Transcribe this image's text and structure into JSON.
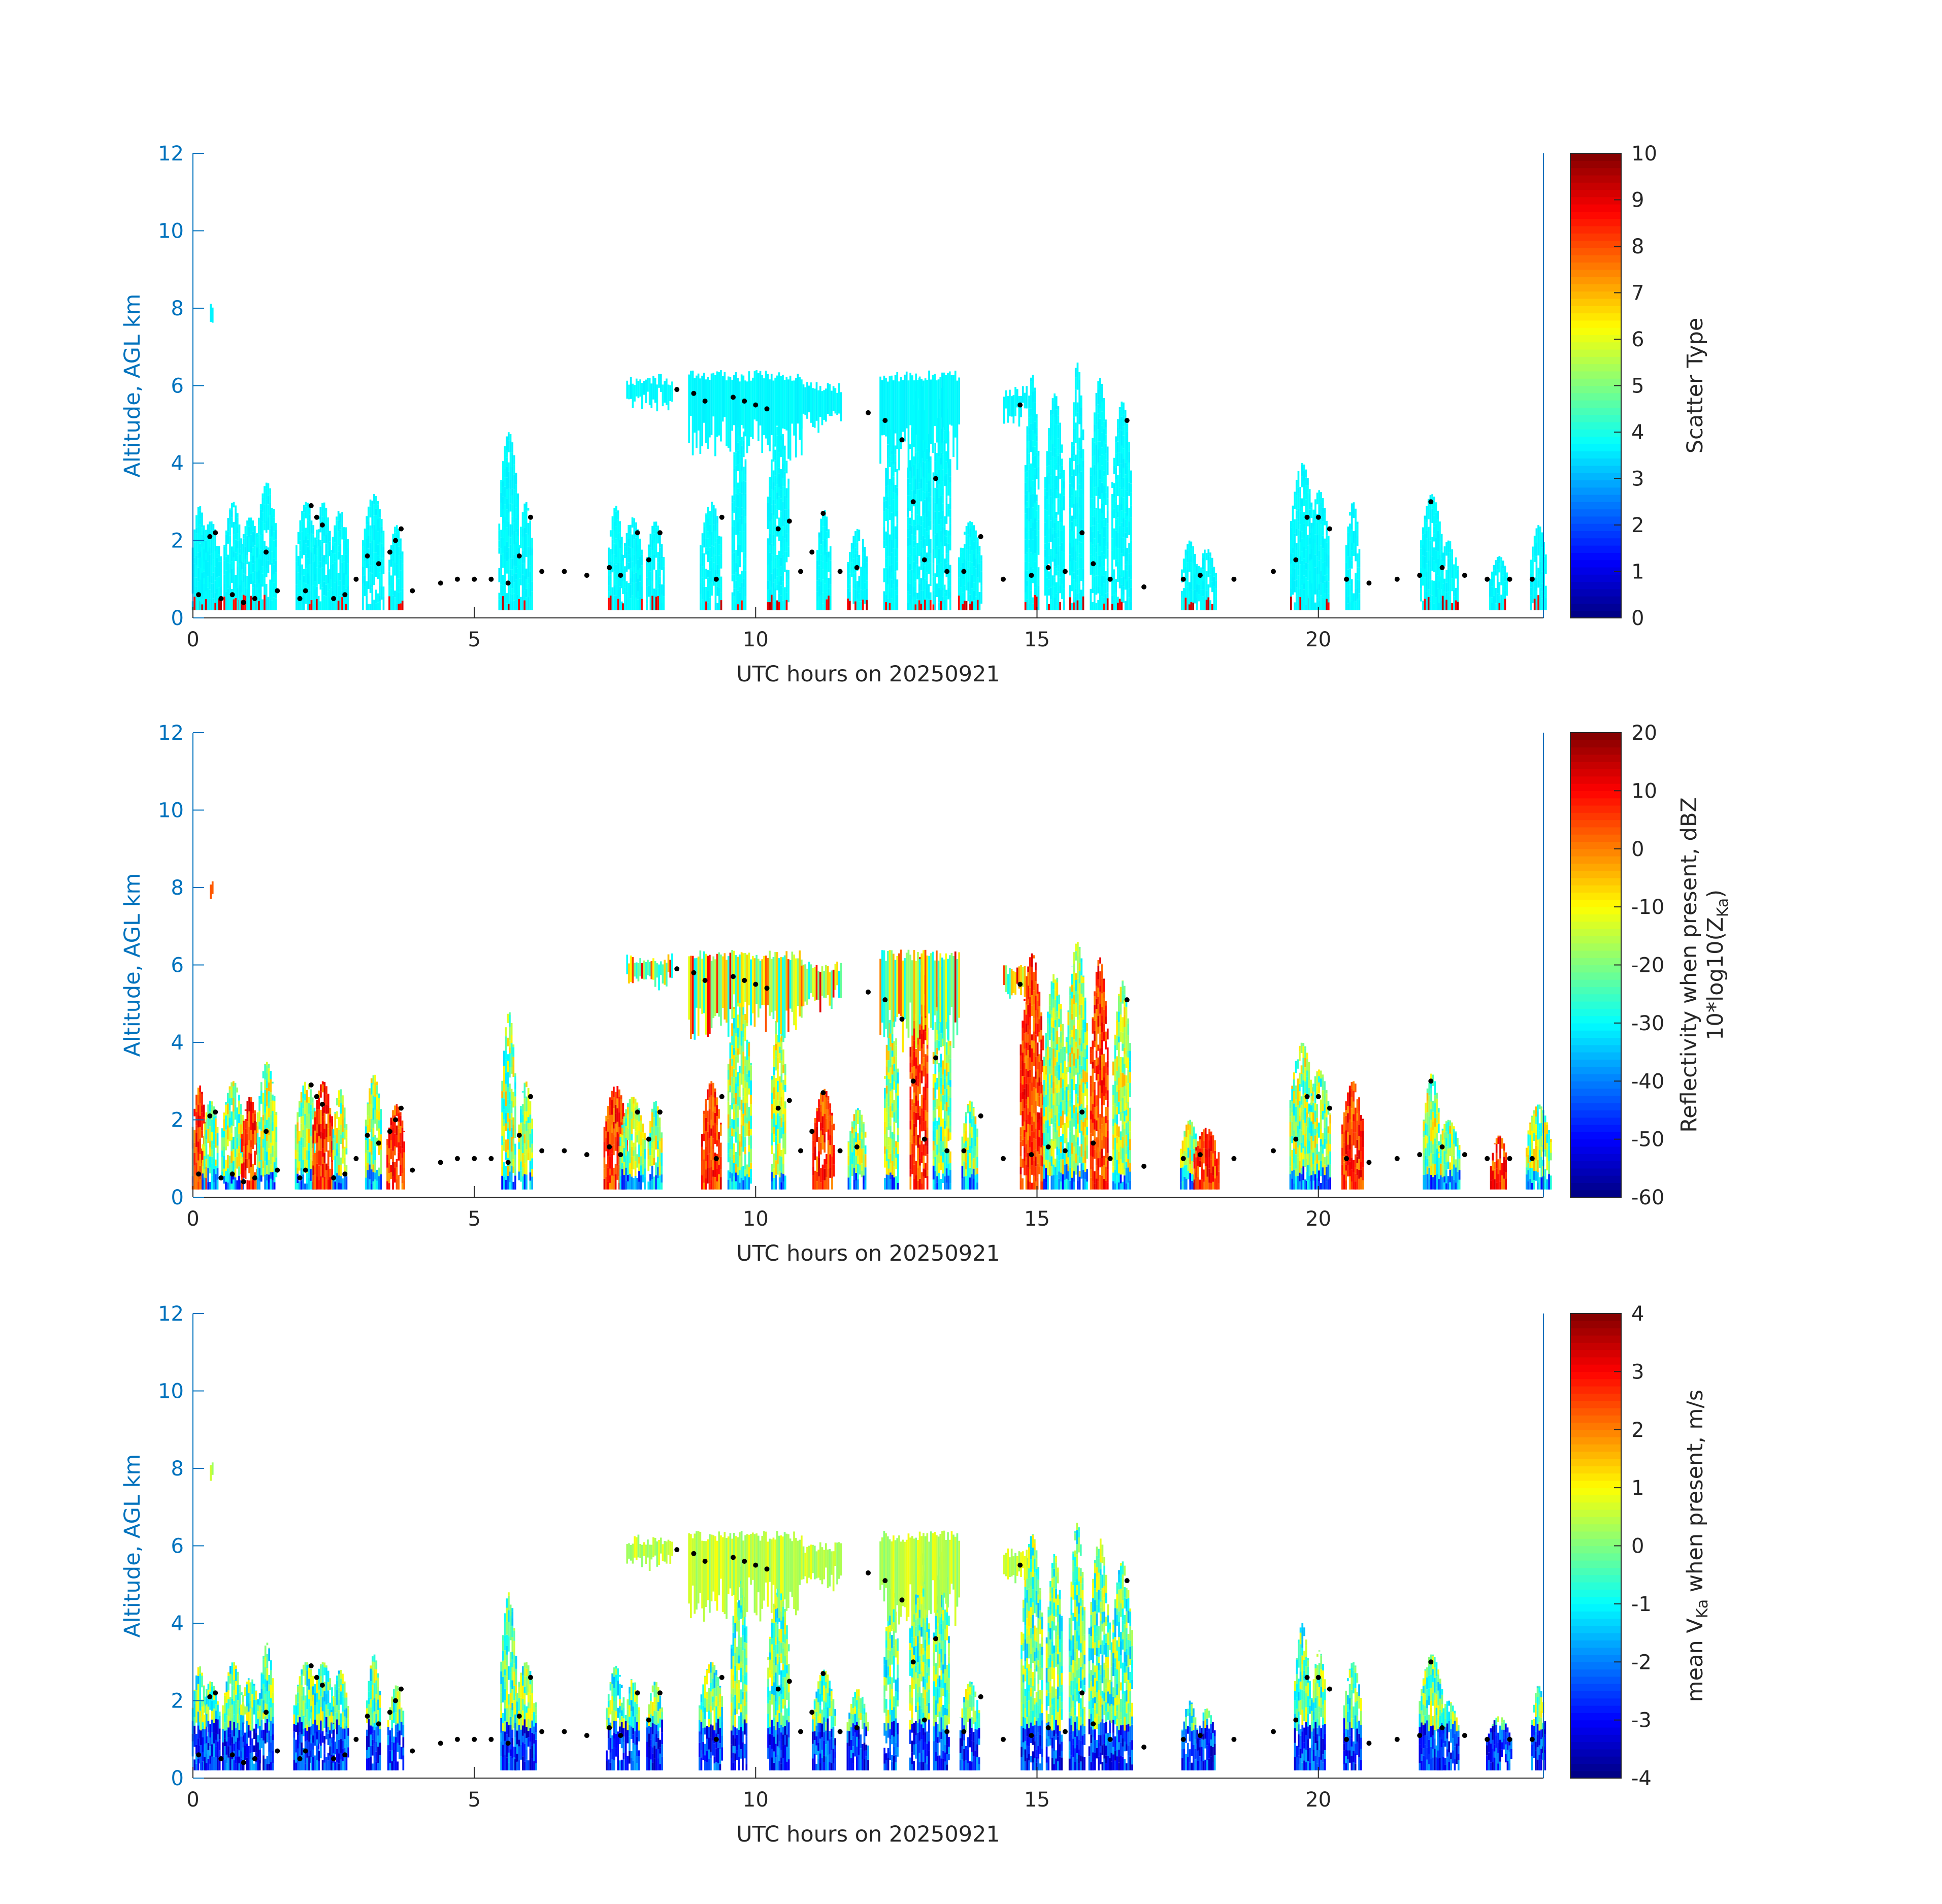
{
  "chart_data": [
    {
      "type": "heatmap",
      "xlabel": "UTC hours on 20250921",
      "ylabel": "Altitude, AGL km",
      "xlim": [
        0,
        24
      ],
      "ylim": [
        0,
        12
      ],
      "xticks": [
        0,
        5,
        10,
        15,
        20
      ],
      "yticks": [
        0,
        2,
        4,
        6,
        8,
        10,
        12
      ],
      "colorbar": {
        "label_lines": [
          "Scatter Type"
        ],
        "range": [
          0,
          10
        ],
        "ticks": [
          0,
          1,
          2,
          3,
          4,
          5,
          6,
          7,
          8,
          9,
          10
        ],
        "colormap": "jet"
      },
      "field": "scatter_type",
      "grid": false
    },
    {
      "type": "heatmap",
      "xlabel": "UTC hours on 20250921",
      "ylabel": "Altitude, AGL km",
      "xlim": [
        0,
        24
      ],
      "ylim": [
        0,
        12
      ],
      "xticks": [
        0,
        5,
        10,
        15,
        20
      ],
      "yticks": [
        0,
        2,
        4,
        6,
        8,
        10,
        12
      ],
      "colorbar": {
        "label_lines": [
          "Reflectivity when present, dBZ",
          "10*log10(Z",
          "Ka",
          ")"
        ],
        "range": [
          -60,
          20
        ],
        "ticks": [
          -60,
          -50,
          -40,
          -30,
          -20,
          -10,
          0,
          10,
          20
        ],
        "colormap": "jet"
      },
      "field": "reflectivity",
      "grid": false
    },
    {
      "type": "heatmap",
      "xlabel": "UTC hours on 20250921",
      "ylabel": "Altitude, AGL km",
      "xlim": [
        0,
        24
      ],
      "ylim": [
        0,
        12
      ],
      "xticks": [
        0,
        5,
        10,
        15,
        20
      ],
      "yticks": [
        0,
        2,
        4,
        6,
        8,
        10,
        12
      ],
      "colorbar": {
        "label_lines": [
          "mean V",
          "Ka",
          " when present, m/s"
        ],
        "range": [
          -4,
          4
        ],
        "ticks": [
          -4,
          -3,
          -2,
          -1,
          0,
          1,
          2,
          3,
          4
        ],
        "colormap": "jet"
      },
      "field": "velocity",
      "grid": false
    }
  ],
  "cloud_features": {
    "note_units": "hours, km",
    "high_layer": [
      {
        "t0": 7.7,
        "t1": 8.5,
        "base": 5.6,
        "top": 6.3
      },
      {
        "t0": 8.8,
        "t1": 10.8,
        "base": 4.2,
        "top": 6.4
      },
      {
        "t0": 10.8,
        "t1": 11.5,
        "base": 5.0,
        "top": 6.1
      },
      {
        "t0": 12.2,
        "t1": 13.6,
        "base": 4.0,
        "top": 6.4
      },
      {
        "t0": 14.4,
        "t1": 14.8,
        "base": 5.2,
        "top": 6.0
      },
      {
        "t0": 0.3,
        "t1": 0.35,
        "base": 7.7,
        "top": 8.2
      }
    ],
    "columns": [
      {
        "t": 0.1,
        "top": 2.9,
        "v": 3.5
      },
      {
        "t": 0.3,
        "top": 2.5,
        "v": 3.8
      },
      {
        "t": 0.7,
        "top": 3.0,
        "v": 3.5
      },
      {
        "t": 1.0,
        "top": 2.6,
        "v": 3.6
      },
      {
        "t": 1.3,
        "top": 3.5,
        "v": 3.5
      },
      {
        "t": 2.0,
        "top": 3.0,
        "v": 3.3
      },
      {
        "t": 2.3,
        "top": 3.0,
        "v": 3.6
      },
      {
        "t": 2.6,
        "top": 2.8,
        "v": 3.4
      },
      {
        "t": 3.2,
        "top": 3.2,
        "v": 3.5
      },
      {
        "t": 3.6,
        "top": 2.4,
        "v": 3.3
      },
      {
        "t": 5.6,
        "top": 4.8,
        "v": 3.5
      },
      {
        "t": 5.9,
        "top": 3.0,
        "v": 3.6
      },
      {
        "t": 7.5,
        "top": 2.9,
        "v": 3.5
      },
      {
        "t": 7.8,
        "top": 2.6,
        "v": 3.5
      },
      {
        "t": 8.2,
        "top": 2.5,
        "v": 3.4
      },
      {
        "t": 9.2,
        "top": 3.0,
        "v": 3.5
      },
      {
        "t": 9.7,
        "top": 5.5,
        "v": 3.5
      },
      {
        "t": 10.4,
        "top": 5.0,
        "v": 3.6
      },
      {
        "t": 11.2,
        "top": 2.8,
        "v": 3.5
      },
      {
        "t": 11.8,
        "top": 2.3,
        "v": 3.4
      },
      {
        "t": 12.4,
        "top": 5.0,
        "v": 3.5
      },
      {
        "t": 12.9,
        "top": 6.2,
        "v": 3.6
      },
      {
        "t": 13.3,
        "top": 6.0,
        "v": 3.5
      },
      {
        "t": 13.8,
        "top": 2.5,
        "v": 3.4
      },
      {
        "t": 14.9,
        "top": 6.3,
        "v": 3.5
      },
      {
        "t": 15.3,
        "top": 5.8,
        "v": 3.6
      },
      {
        "t": 15.7,
        "top": 6.6,
        "v": 3.5
      },
      {
        "t": 16.1,
        "top": 6.2,
        "v": 3.6
      },
      {
        "t": 16.5,
        "top": 5.6,
        "v": 3.5
      },
      {
        "t": 17.7,
        "top": 2.0,
        "v": 3.4
      },
      {
        "t": 18.0,
        "top": 1.8,
        "v": 3.4
      },
      {
        "t": 19.7,
        "top": 4.0,
        "v": 3.5
      },
      {
        "t": 20.0,
        "top": 3.3,
        "v": 3.6
      },
      {
        "t": 20.6,
        "top": 3.0,
        "v": 3.5
      },
      {
        "t": 22.0,
        "top": 3.2,
        "v": 3.6
      },
      {
        "t": 22.3,
        "top": 2.0,
        "v": 3.4
      },
      {
        "t": 23.2,
        "top": 1.6,
        "v": 3.4
      },
      {
        "t": 23.9,
        "top": 2.4,
        "v": 3.5
      }
    ],
    "base_dots": [
      [
        0.1,
        0.6
      ],
      [
        0.3,
        2.1
      ],
      [
        0.4,
        2.2
      ],
      [
        0.5,
        0.5
      ],
      [
        0.7,
        0.6
      ],
      [
        0.9,
        0.4
      ],
      [
        1.1,
        0.5
      ],
      [
        1.3,
        1.7
      ],
      [
        1.5,
        0.7
      ],
      [
        1.9,
        0.5
      ],
      [
        2.0,
        0.7
      ],
      [
        2.1,
        2.9
      ],
      [
        2.2,
        2.6
      ],
      [
        2.3,
        2.4
      ],
      [
        2.5,
        0.5
      ],
      [
        2.7,
        0.6
      ],
      [
        2.9,
        1.0
      ],
      [
        3.1,
        1.6
      ],
      [
        3.3,
        1.4
      ],
      [
        3.5,
        1.7
      ],
      [
        3.6,
        2.0
      ],
      [
        3.7,
        2.3
      ],
      [
        3.9,
        0.7
      ],
      [
        4.4,
        0.9
      ],
      [
        4.7,
        1.0
      ],
      [
        5.0,
        1.0
      ],
      [
        5.3,
        1.0
      ],
      [
        5.6,
        0.9
      ],
      [
        5.8,
        1.6
      ],
      [
        6.0,
        2.6
      ],
      [
        6.2,
        1.2
      ],
      [
        6.6,
        1.2
      ],
      [
        7.0,
        1.1
      ],
      [
        7.4,
        1.3
      ],
      [
        7.6,
        1.1
      ],
      [
        7.9,
        2.2
      ],
      [
        8.1,
        1.5
      ],
      [
        8.3,
        2.2
      ],
      [
        8.6,
        5.9
      ],
      [
        8.9,
        5.8
      ],
      [
        9.1,
        5.6
      ],
      [
        9.3,
        1.0
      ],
      [
        9.4,
        2.6
      ],
      [
        9.6,
        5.7
      ],
      [
        9.8,
        5.6
      ],
      [
        10.0,
        5.5
      ],
      [
        10.2,
        5.4
      ],
      [
        10.4,
        2.3
      ],
      [
        10.6,
        2.5
      ],
      [
        10.8,
        1.2
      ],
      [
        11.0,
        1.7
      ],
      [
        11.2,
        2.7
      ],
      [
        11.5,
        1.2
      ],
      [
        11.8,
        1.3
      ],
      [
        12.0,
        5.3
      ],
      [
        12.3,
        5.1
      ],
      [
        12.6,
        4.6
      ],
      [
        12.8,
        3.0
      ],
      [
        13.0,
        1.5
      ],
      [
        13.2,
        3.6
      ],
      [
        13.4,
        1.2
      ],
      [
        13.7,
        1.2
      ],
      [
        14.0,
        2.1
      ],
      [
        14.4,
        1.0
      ],
      [
        14.7,
        5.5
      ],
      [
        14.9,
        1.1
      ],
      [
        15.2,
        1.3
      ],
      [
        15.5,
        1.2
      ],
      [
        15.8,
        2.2
      ],
      [
        16.0,
        1.4
      ],
      [
        16.3,
        1.0
      ],
      [
        16.6,
        5.1
      ],
      [
        16.9,
        0.8
      ],
      [
        17.6,
        1.0
      ],
      [
        17.9,
        1.1
      ],
      [
        18.5,
        1.0
      ],
      [
        19.2,
        1.2
      ],
      [
        19.6,
        1.5
      ],
      [
        19.8,
        2.6
      ],
      [
        20.0,
        2.6
      ],
      [
        20.2,
        2.3
      ],
      [
        20.5,
        1.0
      ],
      [
        20.9,
        0.9
      ],
      [
        21.4,
        1.0
      ],
      [
        21.8,
        1.1
      ],
      [
        22.0,
        3.0
      ],
      [
        22.2,
        1.3
      ],
      [
        22.6,
        1.1
      ],
      [
        23.0,
        1.0
      ],
      [
        23.4,
        1.0
      ],
      [
        23.8,
        1.0
      ]
    ]
  }
}
